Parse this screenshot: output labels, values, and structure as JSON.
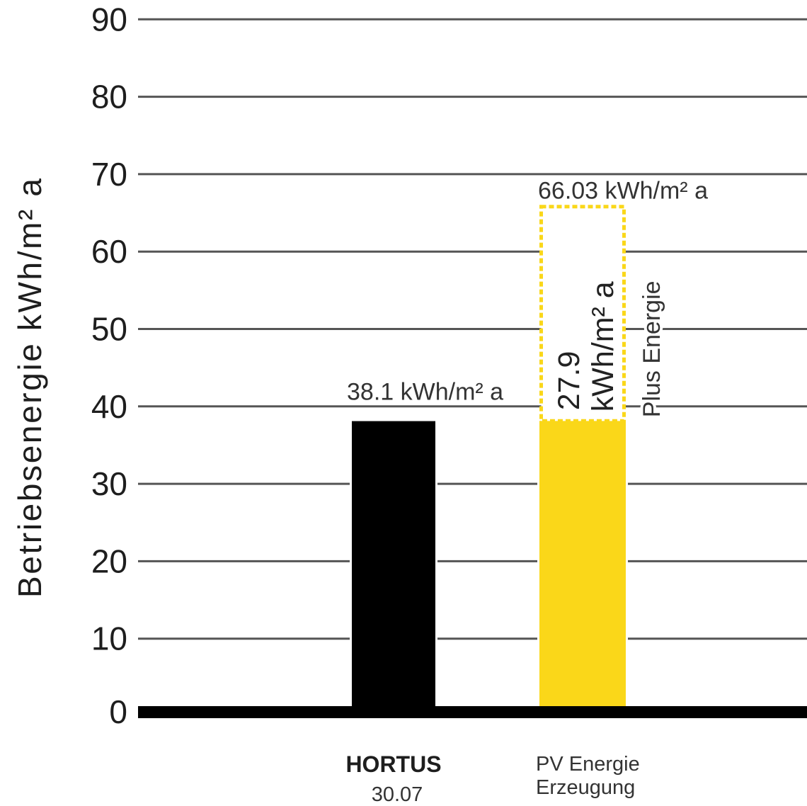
{
  "chart_data": {
    "type": "bar",
    "ylabel": "Betriebsenergie kWh/m² a",
    "ylim": [
      0,
      90
    ],
    "yticks": [
      0,
      10,
      20,
      30,
      40,
      50,
      60,
      70,
      80,
      90
    ],
    "grid": true,
    "bars": [
      {
        "category": "HORTUS",
        "sublabel": "30.07",
        "value": 38.1,
        "value_label": "38.1 kWh/m² a",
        "color": "#000000"
      },
      {
        "category_lines": [
          "PV Energie",
          "Erzeugung"
        ],
        "value": 66.03,
        "value_label": "66.03 kWh/m² a",
        "color": "#FAD719",
        "plus_segment": {
          "value": 27.9,
          "value_text": "27.9",
          "unit_text": "kWh/m² a",
          "annotation": "Plus Energie",
          "dotted": true
        }
      }
    ]
  }
}
